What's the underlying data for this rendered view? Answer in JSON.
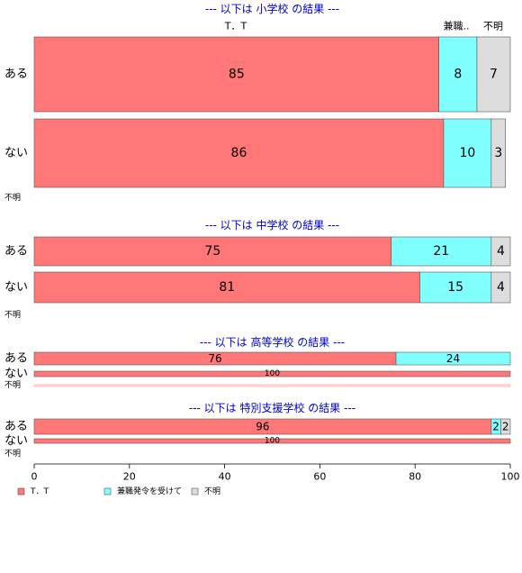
{
  "chart_data": {
    "type": "bar",
    "orientation": "horizontal",
    "stacked": true,
    "xlim": [
      0,
      100
    ],
    "x_ticks": [
      0,
      20,
      40,
      60,
      80,
      100
    ],
    "top_labels": [
      "T．T",
      "兼職..",
      "不明"
    ],
    "legend": {
      "placement": "bottom-left",
      "entries": [
        {
          "label": "T．T",
          "color": "#FF7777"
        },
        {
          "label": "兼職発令を受けて",
          "color": "#80FFFF"
        },
        {
          "label": "不明",
          "color": "#DDDDDD"
        }
      ]
    },
    "series_colors": [
      "#FF7777",
      "#80FFFF",
      "#DDDDDD"
    ],
    "panels": [
      {
        "title": "--- 以下は 小学校 の結果 ---",
        "rows": [
          {
            "label": "ある",
            "values": [
              85,
              8,
              7
            ]
          },
          {
            "label": "ない",
            "values": [
              86,
              10,
              3
            ]
          },
          {
            "label": "不明",
            "values": [
              0,
              0,
              0
            ]
          }
        ]
      },
      {
        "title": "--- 以下は 中学校 の結果 ---",
        "rows": [
          {
            "label": "ある",
            "values": [
              75,
              21,
              4
            ]
          },
          {
            "label": "ない",
            "values": [
              81,
              15,
              4
            ]
          },
          {
            "label": "不明",
            "values": [
              0,
              0,
              0
            ]
          }
        ]
      },
      {
        "title": "--- 以下は 高等学校 の結果 ---",
        "rows": [
          {
            "label": "ある",
            "values": [
              76,
              24,
              0
            ]
          },
          {
            "label": "ない",
            "values": [
              100,
              0,
              0
            ]
          },
          {
            "label": "不明",
            "values": [
              0,
              0,
              0
            ]
          }
        ]
      },
      {
        "title": "--- 以下は 特別支援学校 の結果 ---",
        "rows": [
          {
            "label": "ある",
            "values": [
              96,
              2,
              2
            ]
          },
          {
            "label": "ない",
            "values": [
              100,
              0,
              0
            ]
          },
          {
            "label": "不明",
            "values": [
              0,
              0,
              0
            ]
          }
        ]
      }
    ]
  }
}
